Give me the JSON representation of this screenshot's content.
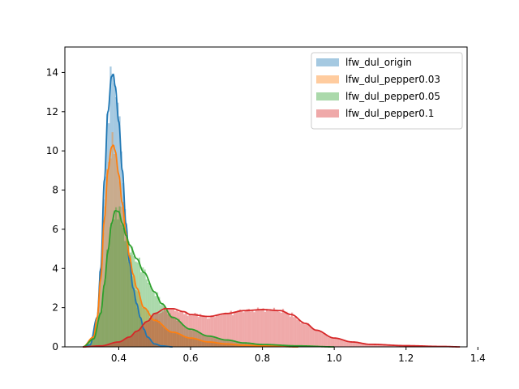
{
  "chart_data": {
    "type": "area",
    "subtype": "histogram-with-kde",
    "xlim": [
      0.25,
      1.37
    ],
    "ylim": [
      0,
      15.3
    ],
    "xticks": [
      0.4,
      0.6,
      0.8,
      1.0,
      1.2,
      1.4
    ],
    "xtick_labels": [
      "0.4",
      "0.6",
      "0.8",
      "1.0",
      "1.2",
      "1.4"
    ],
    "yticks": [
      0,
      2,
      4,
      6,
      8,
      10,
      12,
      14
    ],
    "ytick_labels": [
      "0",
      "2",
      "4",
      "6",
      "8",
      "10",
      "12",
      "14"
    ],
    "grid": false,
    "legend_position": "top-right",
    "series": [
      {
        "name": "lfw_dul_origin",
        "color": "#1f77b4",
        "x": [
          0.3,
          0.32,
          0.34,
          0.35,
          0.36,
          0.37,
          0.38,
          0.385,
          0.39,
          0.4,
          0.41,
          0.42,
          0.43,
          0.44,
          0.45,
          0.46,
          0.47,
          0.48,
          0.5,
          0.52,
          0.55
        ],
        "y": [
          0.0,
          0.1,
          1.5,
          4.0,
          8.5,
          12.0,
          13.8,
          13.9,
          13.3,
          11.5,
          9.0,
          6.3,
          4.3,
          3.0,
          2.2,
          1.5,
          0.9,
          0.5,
          0.15,
          0.05,
          0.0
        ]
      },
      {
        "name": "lfw_dul_pepper0.03",
        "color": "#ff7f0e",
        "x": [
          0.3,
          0.33,
          0.34,
          0.35,
          0.36,
          0.37,
          0.38,
          0.385,
          0.39,
          0.4,
          0.41,
          0.42,
          0.43,
          0.44,
          0.45,
          0.47,
          0.5,
          0.55,
          0.6,
          0.65,
          0.7,
          0.75,
          0.8,
          0.9
        ],
        "y": [
          0.0,
          0.5,
          1.5,
          3.5,
          6.5,
          9.0,
          10.2,
          10.3,
          10.0,
          8.8,
          7.3,
          5.8,
          4.6,
          3.7,
          3.0,
          2.0,
          1.35,
          0.75,
          0.45,
          0.25,
          0.15,
          0.08,
          0.05,
          0.0
        ]
      },
      {
        "name": "lfw_dul_pepper0.05",
        "color": "#2ca02c",
        "x": [
          0.3,
          0.33,
          0.35,
          0.36,
          0.37,
          0.38,
          0.39,
          0.4,
          0.41,
          0.42,
          0.43,
          0.45,
          0.47,
          0.5,
          0.52,
          0.55,
          0.6,
          0.65,
          0.7,
          0.75,
          0.8,
          0.9,
          1.0
        ],
        "y": [
          0.0,
          0.4,
          1.7,
          3.2,
          4.9,
          6.3,
          6.95,
          6.9,
          6.3,
          5.7,
          5.2,
          4.5,
          3.8,
          2.8,
          2.2,
          1.5,
          0.9,
          0.55,
          0.35,
          0.2,
          0.12,
          0.05,
          0.0
        ]
      },
      {
        "name": "lfw_dul_pepper0.1",
        "color": "#d62728",
        "x": [
          0.3,
          0.35,
          0.4,
          0.43,
          0.45,
          0.48,
          0.5,
          0.53,
          0.55,
          0.58,
          0.6,
          0.65,
          0.7,
          0.75,
          0.8,
          0.85,
          0.88,
          0.92,
          0.95,
          1.0,
          1.05,
          1.1,
          1.2,
          1.3,
          1.35
        ],
        "y": [
          0.0,
          0.05,
          0.25,
          0.5,
          0.8,
          1.3,
          1.7,
          1.95,
          1.95,
          1.8,
          1.65,
          1.55,
          1.7,
          1.85,
          1.9,
          1.85,
          1.65,
          1.2,
          0.85,
          0.45,
          0.25,
          0.13,
          0.06,
          0.02,
          0.0
        ]
      }
    ]
  }
}
